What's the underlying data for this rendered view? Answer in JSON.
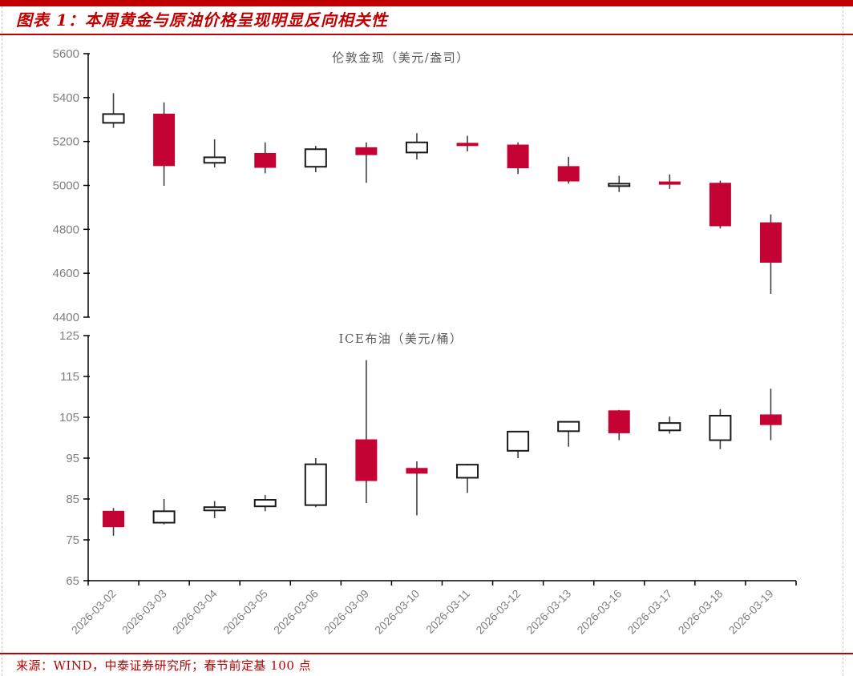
{
  "header": {
    "title": "图表 1：本周黄金与原油价格呈现明显反向相关性"
  },
  "footer": {
    "source": "来源：WIND，中泰证券研究所；春节前定基 100 点"
  },
  "colors": {
    "accent_red": "#C00000",
    "candle_down_fill": "#C40233",
    "candle_up_fill": "#FFFFFF",
    "candle_up_border": "#1A1A1A",
    "wick": "#404040",
    "axis": "#000000",
    "tick_label": "#7F7F7F",
    "panel_title": "#595959"
  },
  "chart_data": [
    {
      "type": "candlestick",
      "title": "伦敦金现（美元/盎司）",
      "ylabel": "美元/盎司",
      "ylim": [
        4400,
        5600
      ],
      "ytick_step": 200,
      "grid": false,
      "legend": "none",
      "up_style": "hollow-white",
      "down_style": "filled-red",
      "categories": [
        "2026-03-02",
        "2026-03-03",
        "2026-03-04",
        "2026-03-05",
        "2026-03-06",
        "2026-03-09",
        "2026-03-10",
        "2026-03-11",
        "2026-03-12",
        "2026-03-13",
        "2026-03-16",
        "2026-03-17",
        "2026-03-18",
        "2026-03-19"
      ],
      "ohlc_format": [
        "open",
        "high",
        "low",
        "close"
      ],
      "ohlc": [
        [
          5285,
          5420,
          5262,
          5325
        ],
        [
          5325,
          5378,
          4998,
          5090
        ],
        [
          5103,
          5210,
          5082,
          5128
        ],
        [
          5146,
          5196,
          5055,
          5082
        ],
        [
          5085,
          5180,
          5060,
          5165
        ],
        [
          5172,
          5196,
          5012,
          5140
        ],
        [
          5150,
          5238,
          5118,
          5196
        ],
        [
          5192,
          5226,
          5155,
          5186
        ],
        [
          5184,
          5196,
          5052,
          5080
        ],
        [
          5086,
          5130,
          5008,
          5020
        ],
        [
          5002,
          5044,
          4970,
          5008
        ],
        [
          5016,
          5050,
          4984,
          5010
        ],
        [
          5010,
          5022,
          4804,
          4816
        ],
        [
          4830,
          4868,
          4506,
          4650
        ]
      ],
      "show_x_labels": false
    },
    {
      "type": "candlestick",
      "title": "ICE布油（美元/桶）",
      "ylabel": "美元/桶",
      "ylim": [
        65,
        125
      ],
      "ytick_step": 10,
      "grid": false,
      "legend": "none",
      "up_style": "hollow-white",
      "down_style": "filled-red",
      "categories": [
        "2026-03-02",
        "2026-03-03",
        "2026-03-04",
        "2026-03-05",
        "2026-03-06",
        "2026-03-09",
        "2026-03-10",
        "2026-03-11",
        "2026-03-12",
        "2026-03-13",
        "2026-03-16",
        "2026-03-17",
        "2026-03-18",
        "2026-03-19"
      ],
      "ohlc_format": [
        "open",
        "high",
        "low",
        "close"
      ],
      "ohlc": [
        [
          82.0,
          82.8,
          76.0,
          78.2
        ],
        [
          79.2,
          85.0,
          78.8,
          82.0
        ],
        [
          82.2,
          84.5,
          80.3,
          83.0
        ],
        [
          83.2,
          86.0,
          82.0,
          84.8
        ],
        [
          83.5,
          95.0,
          83.0,
          93.5
        ],
        [
          99.5,
          119.0,
          84.0,
          89.5
        ],
        [
          92.5,
          94.2,
          81.0,
          91.3
        ],
        [
          90.2,
          93.6,
          86.5,
          93.4
        ],
        [
          96.8,
          101.6,
          95.0,
          101.5
        ],
        [
          101.6,
          104.0,
          97.8,
          103.9
        ],
        [
          106.6,
          106.8,
          99.4,
          101.2
        ],
        [
          101.8,
          105.2,
          101.0,
          103.6
        ],
        [
          99.4,
          107.0,
          97.2,
          105.4
        ],
        [
          105.6,
          112.0,
          99.4,
          103.2
        ]
      ],
      "show_x_labels": true
    }
  ]
}
